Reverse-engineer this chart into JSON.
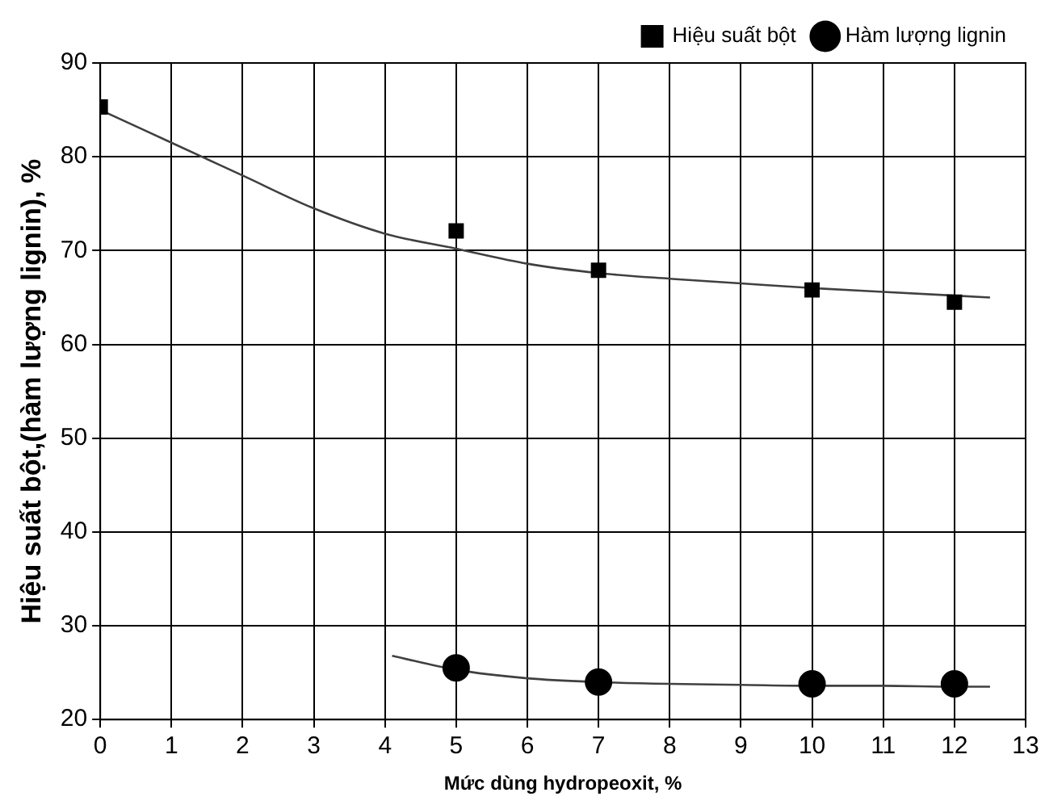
{
  "chart_data": {
    "type": "scatter",
    "xlabel": "Mức dùng hydropeoxit, %",
    "ylabel": "Hiệu suất bột,(hàm lượng lignin), %",
    "series": [
      {
        "name": "Hiệu suất bột",
        "color": "#000000",
        "marker": "square",
        "x": [
          0,
          5,
          7,
          10,
          12
        ],
        "values": [
          85.3,
          72.1,
          67.9,
          65.8,
          64.5
        ]
      },
      {
        "name": "Hàm lượng lignin",
        "color": "#000000",
        "marker": "circle",
        "x": [
          5,
          7,
          10,
          12
        ],
        "values": [
          25.5,
          24,
          23.8,
          23.8
        ]
      },
      {
        "type": "line",
        "color": "#404040",
        "marker": "none",
        "x": [
          0,
          1,
          2,
          3,
          4,
          5,
          6,
          7,
          8,
          9,
          10,
          11,
          12,
          12.5
        ],
        "values": [
          85,
          81.5,
          78,
          74.5,
          71.8,
          70.2,
          68.6,
          67.6,
          67,
          66.5,
          66,
          65.6,
          65.2,
          65
        ]
      },
      {
        "type": "line",
        "color": "#404040",
        "marker": "none",
        "x": [
          4.1,
          5,
          6,
          7,
          8,
          9,
          10,
          11,
          12,
          12.5
        ],
        "values": [
          26.8,
          25.3,
          24.4,
          24,
          23.8,
          23.7,
          23.6,
          23.6,
          23.5,
          23.5
        ]
      }
    ],
    "xlim": [
      0,
      13
    ],
    "xticks": [
      0,
      1,
      2,
      3,
      4,
      5,
      6,
      7,
      8,
      9,
      10,
      11,
      12,
      13
    ],
    "ylim": [
      20,
      90
    ],
    "yticks": [
      20,
      30,
      40,
      50,
      60,
      70,
      80,
      90
    ],
    "grid": true,
    "legend": "top right"
  }
}
